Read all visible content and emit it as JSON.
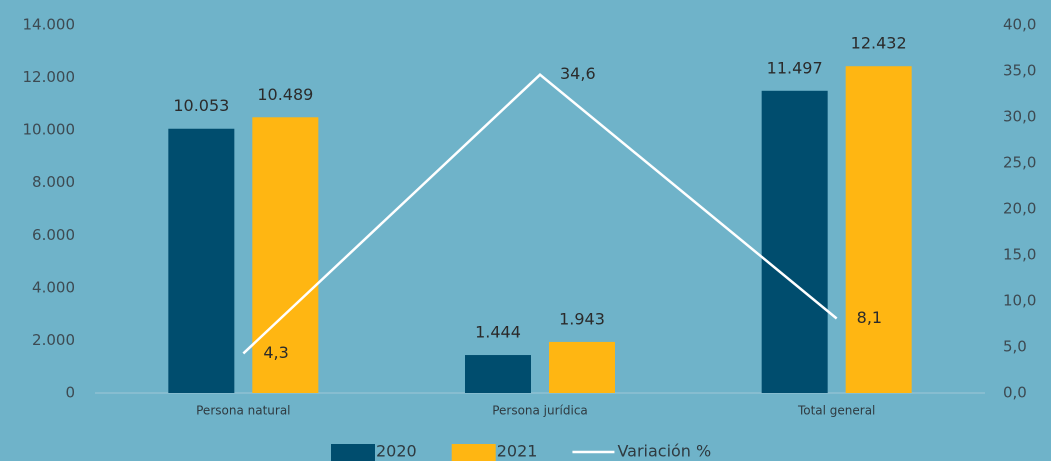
{
  "chart_data": {
    "type": "bar",
    "categories": [
      "Persona natural",
      "Persona jurídica",
      "Total general"
    ],
    "series": [
      {
        "name": "2020",
        "type": "bar",
        "color": "#004d6e",
        "values": [
          10053,
          1444,
          11497
        ],
        "value_labels": [
          "10.053",
          "1.444",
          "11.497"
        ]
      },
      {
        "name": "2021",
        "type": "bar",
        "color": "#ffb612",
        "values": [
          10489,
          1943,
          12432
        ],
        "value_labels": [
          "10.489",
          "1.943",
          "12.432"
        ]
      },
      {
        "name": "Variación %",
        "type": "line",
        "axis": "y2",
        "color": "#ffffff",
        "values": [
          4.3,
          34.6,
          8.1
        ],
        "value_labels": [
          "4,3",
          "34,6",
          "8,1"
        ]
      }
    ],
    "ylim": [
      0,
      14000
    ],
    "yticks": [
      0,
      {
        "value": 2000,
        "label": "2.000"
      },
      {
        "value": 4000,
        "label": "4.000"
      },
      {
        "value": 6000,
        "label": "6.000"
      },
      {
        "value": 8000,
        "label": "8.000"
      },
      {
        "value": 10000,
        "label": "10.000"
      },
      {
        "value": 12000,
        "label": "12.000"
      },
      {
        "value": 14000,
        "label": "14.000"
      }
    ],
    "y2lim": [
      0,
      40
    ],
    "y2ticks": [
      {
        "value": 0,
        "label": "0,0"
      },
      {
        "value": 5,
        "label": "5,0"
      },
      {
        "value": 10,
        "label": "10,0"
      },
      {
        "value": 15,
        "label": "15,0"
      },
      {
        "value": 20,
        "label": "20,0"
      },
      {
        "value": 25,
        "label": "25,0"
      },
      {
        "value": 30,
        "label": "30,0"
      },
      {
        "value": 35,
        "label": "35,0"
      },
      {
        "value": 40,
        "label": "40,0"
      }
    ],
    "legend": "bottom",
    "grid": false
  }
}
